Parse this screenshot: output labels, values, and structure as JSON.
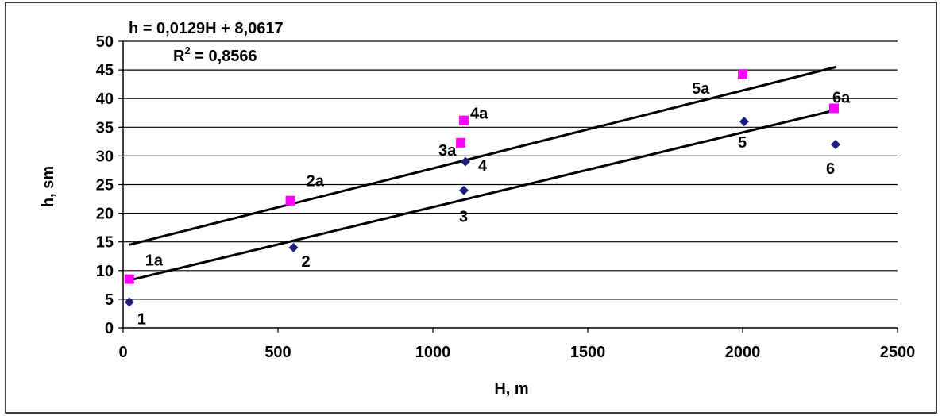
{
  "chart_data": {
    "type": "scatter",
    "title": "",
    "xlabel": "H, m",
    "ylabel": "h, sm",
    "xlim": [
      0,
      2500
    ],
    "ylim": [
      0,
      50
    ],
    "xticks": [
      "0",
      "500",
      "1000",
      "1500",
      "2000",
      "2500"
    ],
    "yticks": [
      "0",
      "5",
      "10",
      "15",
      "20",
      "25",
      "30",
      "35",
      "40",
      "45",
      "50"
    ],
    "grid": "horizontal",
    "legend": "none",
    "equation": "h = 0,0129H + 8,0617",
    "r_squared_prefix": "R",
    "r_squared_power": "2",
    "r_squared_value": " = 0,8566",
    "series": [
      {
        "marker": "diamond",
        "color": "#1f1f7a",
        "points": [
          {
            "x": 20,
            "y": 4.5,
            "label": "1"
          },
          {
            "x": 550,
            "y": 14,
            "label": "2"
          },
          {
            "x": 1100,
            "y": 24,
            "label": "3"
          },
          {
            "x": 1105,
            "y": 29,
            "label": "4"
          },
          {
            "x": 2005,
            "y": 36,
            "label": "5"
          },
          {
            "x": 2300,
            "y": 32,
            "label": "6"
          }
        ],
        "trendline": {
          "x1": 20,
          "y1": 8.3,
          "x2": 2300,
          "y2": 38
        }
      },
      {
        "marker": "square",
        "color": "#ff00ff",
        "points": [
          {
            "x": 20,
            "y": 8.5,
            "label": "1a"
          },
          {
            "x": 540,
            "y": 22.2,
            "label": "2a"
          },
          {
            "x": 1090,
            "y": 32.3,
            "label": "3a"
          },
          {
            "x": 1100,
            "y": 36.2,
            "label": "4a"
          },
          {
            "x": 2000,
            "y": 44.3,
            "label": "5a"
          },
          {
            "x": 2295,
            "y": 38.3,
            "label": "6a"
          }
        ],
        "trendline": {
          "x1": 20,
          "y1": 14.5,
          "x2": 2300,
          "y2": 45.5
        }
      }
    ]
  }
}
